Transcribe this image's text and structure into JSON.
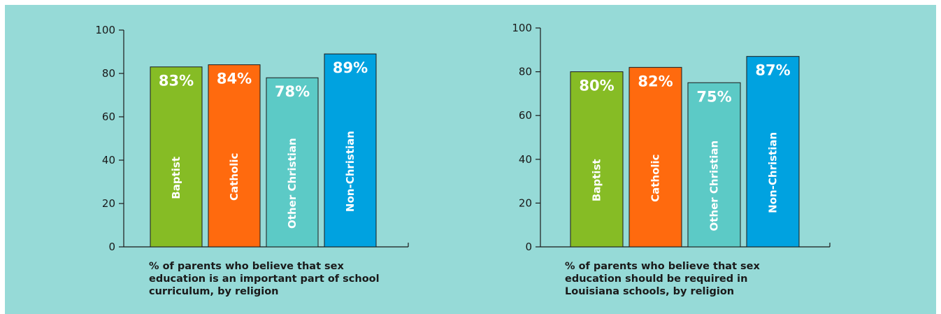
{
  "chart_data": [
    {
      "type": "bar",
      "categories": [
        "Baptist",
        "Catholic",
        "Other Christian",
        "Non-Christian"
      ],
      "values": [
        83,
        84,
        78,
        89
      ],
      "value_labels": [
        "83%",
        "84%",
        "78%",
        "89%"
      ],
      "title": "% of parents who believe that sex education is an important part of school curriculum, by religion",
      "title_lines": [
        "% of parents who believe that sex",
        "education is an important part of school",
        "curriculum, by religion"
      ],
      "ylim": [
        0,
        100
      ],
      "yticks": [
        0,
        20,
        40,
        60,
        80,
        100
      ],
      "colors": [
        "#86bc25",
        "#ff6a0e",
        "#5ccac6",
        "#00a2e0"
      ],
      "grid": false,
      "legend": "none"
    },
    {
      "type": "bar",
      "categories": [
        "Baptist",
        "Catholic",
        "Other Christian",
        "Non-Christian"
      ],
      "values": [
        80,
        82,
        75,
        87
      ],
      "value_labels": [
        "80%",
        "82%",
        "75%",
        "87%"
      ],
      "title": "% of parents who believe that sex education should be required in Louisiana schools, by religion",
      "title_lines": [
        "% of parents who believe that sex",
        "education should be required in",
        "Louisiana schools, by religion"
      ],
      "ylim": [
        0,
        100
      ],
      "yticks": [
        0,
        20,
        40,
        60,
        80,
        100
      ],
      "colors": [
        "#86bc25",
        "#ff6a0e",
        "#5ccac6",
        "#00a2e0"
      ],
      "grid": false,
      "legend": "none"
    }
  ],
  "colors": {
    "background": "#96dad7",
    "axis": "#1a1a1a",
    "bar_outline": "#1a1a1a"
  }
}
